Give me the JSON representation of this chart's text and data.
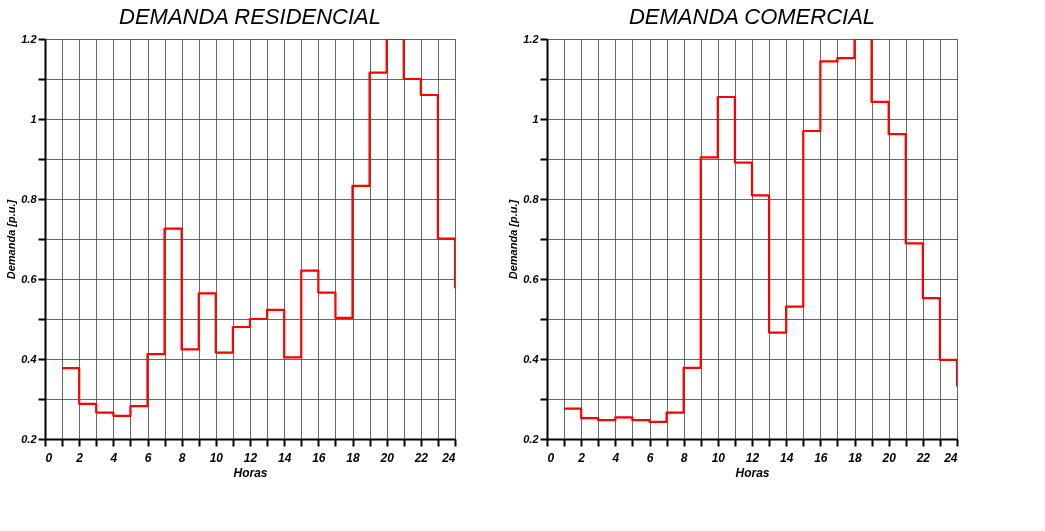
{
  "chart_data": [
    {
      "type": "step",
      "title": "DEMANDA RESIDENCIAL",
      "xlabel": "Horas",
      "ylabel": "Demanda [p.u.]",
      "x": [
        1,
        2,
        3,
        4,
        5,
        6,
        7,
        8,
        9,
        10,
        11,
        12,
        13,
        14,
        15,
        16,
        17,
        18,
        19,
        20,
        21,
        22,
        23,
        24
      ],
      "series": [
        {
          "color": "#ff0000",
          "values": [
            0.377,
            0.288,
            0.266,
            0.258,
            0.282,
            0.412,
            0.726,
            0.424,
            0.564,
            0.416,
            0.48,
            0.5,
            0.523,
            0.404,
            0.621,
            0.566,
            0.503,
            0.833,
            1.116,
            1.2,
            1.1,
            1.06,
            0.701,
            0.577
          ]
        }
      ],
      "xlim": [
        0,
        24
      ],
      "ylim": [
        0.2,
        1.2
      ],
      "xticks": [
        0,
        {
          "value": 1,
          "label": null
        },
        2,
        {
          "value": 3,
          "label": null
        },
        4,
        {
          "value": 5,
          "label": null
        },
        6,
        {
          "value": 7,
          "label": null
        },
        8,
        {
          "value": 9,
          "label": null
        },
        10,
        {
          "value": 11,
          "label": null
        },
        12,
        {
          "value": 13,
          "label": null
        },
        14,
        {
          "value": 15,
          "label": null
        },
        16,
        {
          "value": 17,
          "label": null
        },
        18,
        {
          "value": 19,
          "label": null
        },
        20,
        {
          "value": 21,
          "label": null
        },
        22,
        {
          "value": 23,
          "label": null
        },
        24
      ],
      "yticks": [
        0.2,
        {
          "value": 0.3,
          "label": null
        },
        0.4,
        {
          "value": 0.5,
          "label": null
        },
        0.6,
        {
          "value": 0.7,
          "label": null
        },
        0.8,
        {
          "value": 0.9,
          "label": null
        },
        1,
        {
          "value": 1.1,
          "label": null
        },
        1.2
      ],
      "grid": true
    },
    {
      "type": "step",
      "title": "DEMANDA COMERCIAL",
      "xlabel": "Horas",
      "ylabel": "Demanda [p.u.]",
      "x": [
        1,
        2,
        3,
        4,
        5,
        6,
        7,
        8,
        9,
        10,
        11,
        12,
        13,
        14,
        15,
        16,
        17,
        18,
        19,
        20,
        21,
        22,
        23,
        24
      ],
      "series": [
        {
          "color": "#ff0000",
          "values": [
            0.276,
            0.252,
            0.247,
            0.254,
            0.247,
            0.243,
            0.266,
            0.378,
            0.904,
            1.055,
            0.891,
            0.809,
            0.466,
            0.531,
            0.97,
            1.144,
            1.152,
            1.2,
            1.043,
            0.962,
            0.689,
            0.552,
            0.398,
            0.331
          ]
        }
      ],
      "xlim": [
        0,
        24
      ],
      "ylim": [
        0.2,
        1.2
      ],
      "xticks": [
        0,
        {
          "value": 1,
          "label": null
        },
        2,
        {
          "value": 3,
          "label": null
        },
        4,
        {
          "value": 5,
          "label": null
        },
        6,
        {
          "value": 7,
          "label": null
        },
        8,
        {
          "value": 9,
          "label": null
        },
        10,
        {
          "value": 11,
          "label": null
        },
        12,
        {
          "value": 13,
          "label": null
        },
        14,
        {
          "value": 15,
          "label": null
        },
        16,
        {
          "value": 17,
          "label": null
        },
        18,
        {
          "value": 19,
          "label": null
        },
        20,
        {
          "value": 21,
          "label": null
        },
        22,
        {
          "value": 23,
          "label": null
        },
        24
      ],
      "yticks": [
        0.2,
        {
          "value": 0.3,
          "label": null
        },
        0.4,
        {
          "value": 0.5,
          "label": null
        },
        0.6,
        {
          "value": 0.7,
          "label": null
        },
        0.8,
        {
          "value": 0.9,
          "label": null
        },
        1,
        {
          "value": 1.1,
          "label": null
        },
        1.2
      ],
      "grid": true
    }
  ]
}
